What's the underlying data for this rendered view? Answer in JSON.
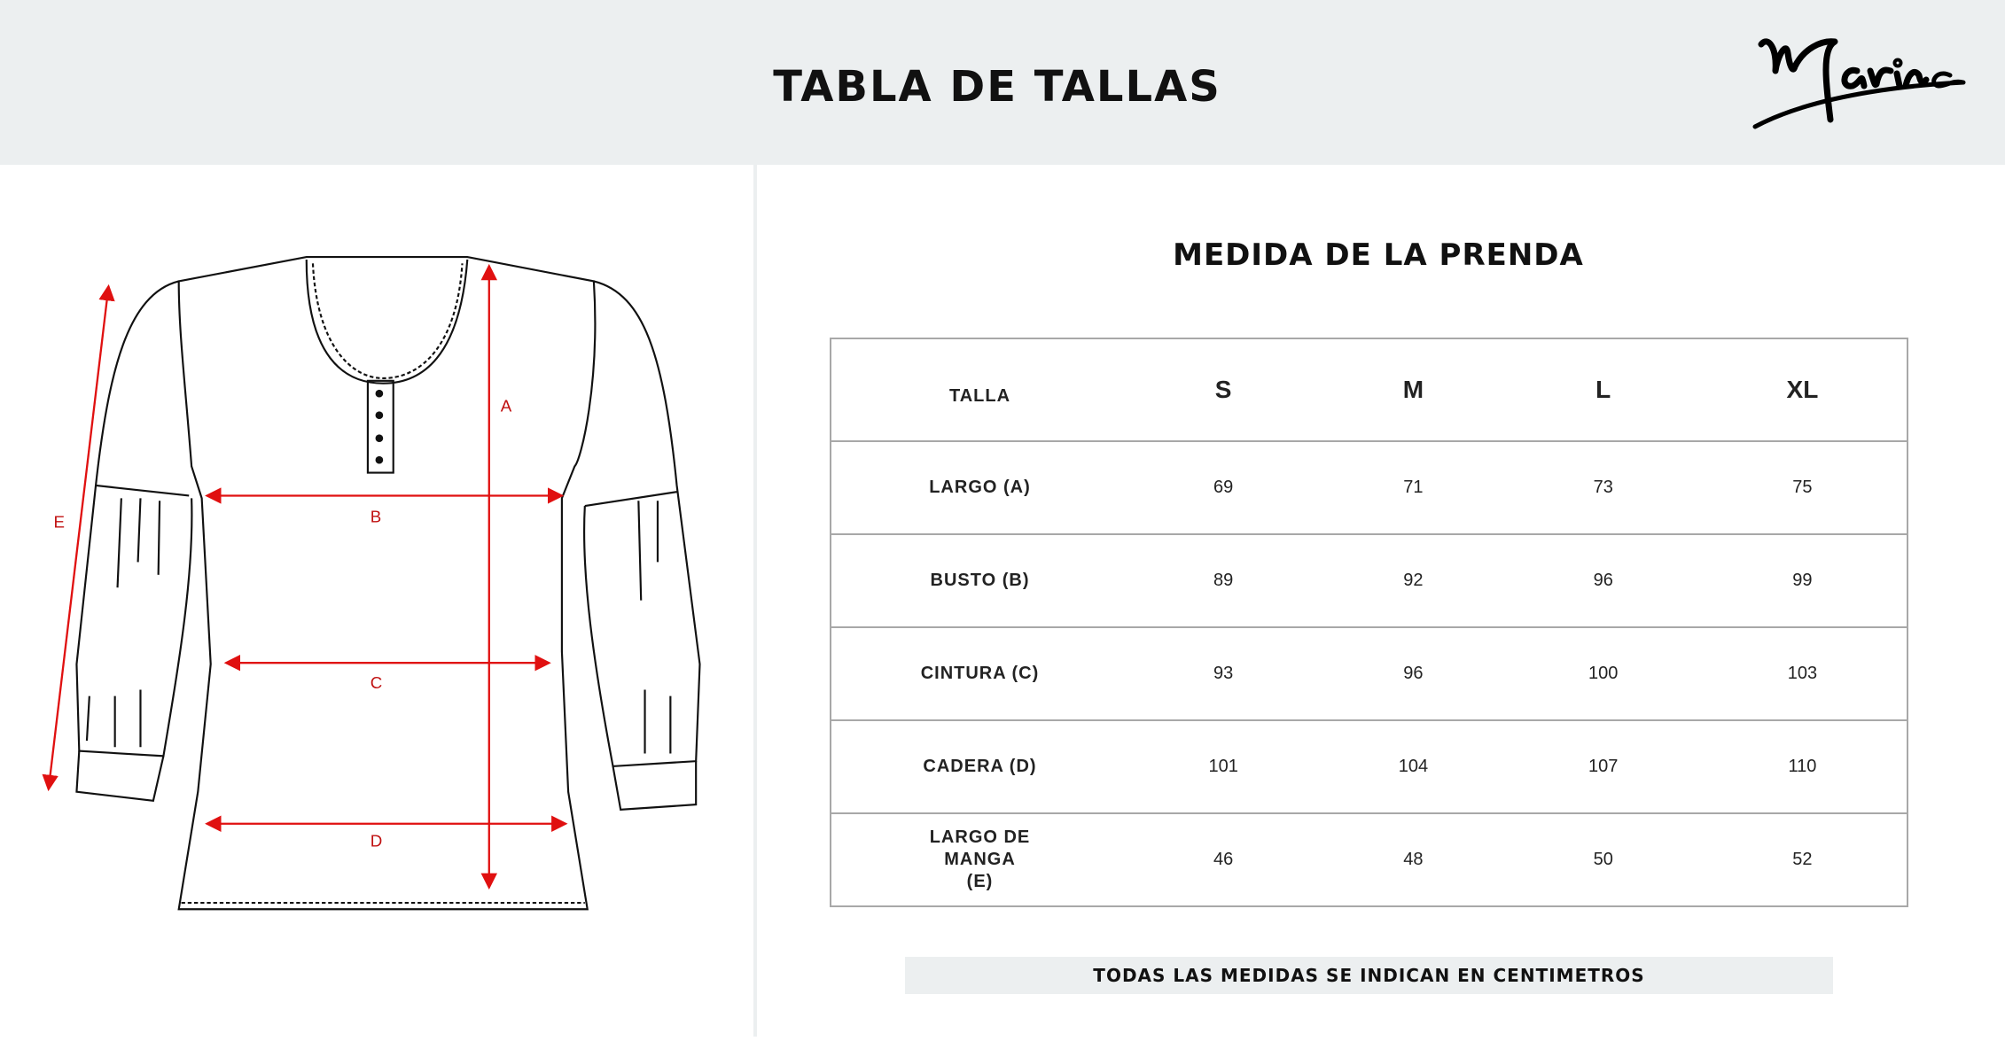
{
  "header": {
    "title": "TABLA DE TALLAS",
    "logo_text": "Marina"
  },
  "diagram": {
    "labels": {
      "a": "A",
      "b": "B",
      "c": "C",
      "d": "D",
      "e": "E"
    },
    "arrow_color": "#e01010"
  },
  "table": {
    "title": "MEDIDA DE LA PRENDA",
    "header": {
      "label": "TALLA",
      "sizes": [
        "S",
        "M",
        "L",
        "XL"
      ]
    },
    "rows": [
      {
        "label": "LARGO (A)",
        "values": [
          "69",
          "71",
          "73",
          "75"
        ]
      },
      {
        "label": "BUSTO (B)",
        "values": [
          "89",
          "92",
          "96",
          "99"
        ]
      },
      {
        "label": "CINTURA (C)",
        "values": [
          "93",
          "96",
          "100",
          "103"
        ]
      },
      {
        "label": "CADERA (D)",
        "values": [
          "101",
          "104",
          "107",
          "110"
        ]
      },
      {
        "label": "LARGO DE MANGA (E)",
        "values": [
          "46",
          "48",
          "50",
          "52"
        ]
      }
    ]
  },
  "note": "TODAS LAS MEDIDAS SE INDICAN EN CENTIMETROS",
  "colors": {
    "header_bg": "#eceff0",
    "border": "#a8a8a8",
    "accent": "#e01010"
  }
}
